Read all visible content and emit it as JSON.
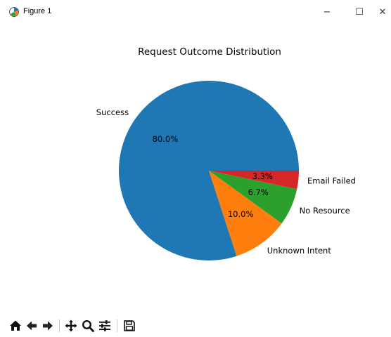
{
  "window": {
    "title": "Figure 1",
    "minimize_glyph": "−",
    "maximize_glyph": "☐",
    "close_glyph": "✕"
  },
  "toolbar": {
    "tools": [
      {
        "name": "home-icon"
      },
      {
        "name": "back-arrow-icon"
      },
      {
        "name": "forward-arrow-icon"
      },
      {
        "name": "pan-move-icon"
      },
      {
        "name": "zoom-magnifier-icon"
      },
      {
        "name": "configure-subplots-icon"
      },
      {
        "name": "save-floppy-icon"
      }
    ]
  },
  "chart_data": {
    "type": "pie",
    "title": "Request Outcome Distribution",
    "labels": [
      "Success",
      "Unknown Intent",
      "No Resource",
      "Email Failed"
    ],
    "values": [
      80.0,
      10.0,
      6.7,
      3.3
    ],
    "autopct": [
      "80.0%",
      "10.0%",
      "6.7%",
      "3.3%"
    ],
    "colors": [
      "#1f77b4",
      "#ff7f0e",
      "#2ca02c",
      "#d62728"
    ],
    "start_angle_deg": 0,
    "direction": "counterclockwise",
    "legend": "none"
  }
}
